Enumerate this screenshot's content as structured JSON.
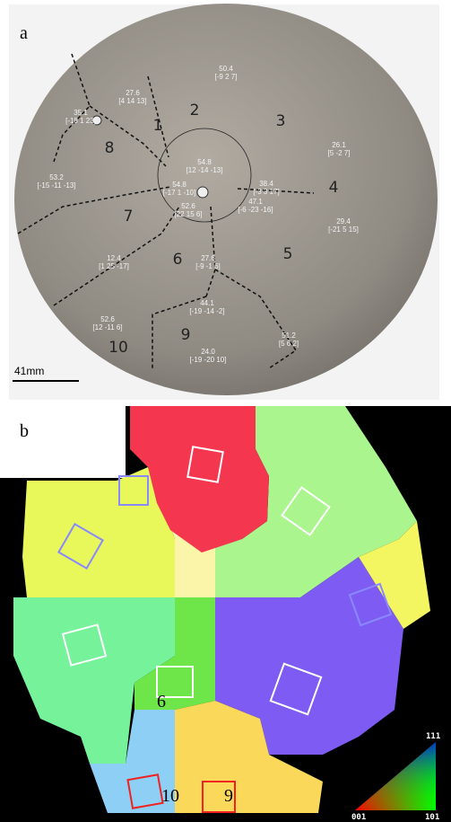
{
  "panel_a": {
    "label": "a",
    "grain_numbers": [
      "1",
      "2",
      "3",
      "4",
      "5",
      "6",
      "7",
      "8",
      "9",
      "10"
    ],
    "annotations": [
      {
        "angle": "35.1",
        "orientation": "[-18 1 23]"
      },
      {
        "angle": "27.6",
        "orientation": "[4 14 13]"
      },
      {
        "angle": "50.4",
        "orientation": "[-9 2 7]"
      },
      {
        "angle": "26.1",
        "orientation": "[5 -2 7]"
      },
      {
        "angle": "53.2",
        "orientation": "[-15 -11 -13]"
      },
      {
        "angle": "54.8",
        "orientation": "[-17 1 -10]"
      },
      {
        "angle": "54.8",
        "orientation": "[12 -14 -13]"
      },
      {
        "angle": "52.6",
        "orientation": "[22 15 6]"
      },
      {
        "angle": "38.4",
        "orientation": "[-3 3 17]"
      },
      {
        "angle": "47.1",
        "orientation": "[-6 -23 -16]"
      },
      {
        "angle": "29.4",
        "orientation": "[-21 5 15]"
      },
      {
        "angle": "12.4",
        "orientation": "[1 25 -17]"
      },
      {
        "angle": "27.6",
        "orientation": "[-9 -1 6]"
      },
      {
        "angle": "44.1",
        "orientation": "[-19 -14 -2]"
      },
      {
        "angle": "52.6",
        "orientation": "[12 -11 6]"
      },
      {
        "angle": "24.0",
        "orientation": "[-19 -20 10]"
      },
      {
        "angle": "51.2",
        "orientation": "[5 6 2]"
      }
    ],
    "scale_bar": "41mm"
  },
  "panel_b": {
    "label": "b",
    "grain_numbers": [
      "6",
      "10",
      "9"
    ],
    "legend": {
      "top": "111",
      "left": "001",
      "right": "101"
    }
  }
}
